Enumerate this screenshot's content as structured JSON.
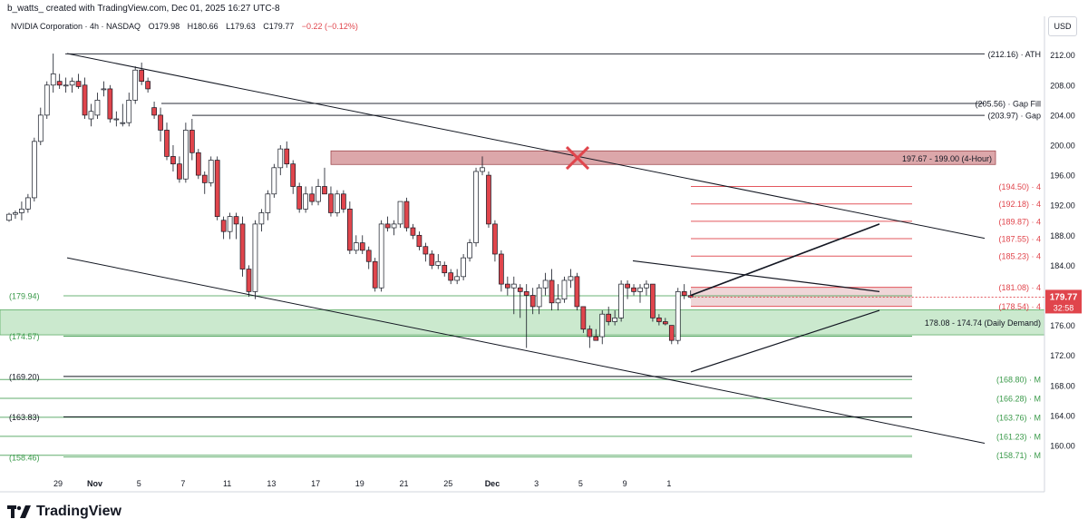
{
  "header": {
    "credit": "b_watts_ created with TradingView.com, Dec 01, 2025 16:27 UTC-8",
    "symbol": "NVIDIA Corporation · 4h · NASDAQ",
    "open": "O179.98",
    "high": "H180.66",
    "low": "L179.63",
    "close": "C179.77",
    "change": "−0.22 (−0.12%)",
    "currency": "USD"
  },
  "footer": {
    "brand": "TradingView"
  },
  "colors": {
    "up_fill": "#ffffff",
    "down_fill": "#e0454c",
    "candle_outline": "#131722",
    "red_level": "#e0454c",
    "green_level": "#3a9a4a",
    "demand_zone": "#b9e2bd",
    "supply_zone": "#d08a8e",
    "price_tag": "#e0454c"
  },
  "chart_data": {
    "type": "candlestick",
    "title": "NVIDIA Corporation · 4h · NASDAQ",
    "ylim": [
      156.5,
      214.5
    ],
    "y_ticks": [
      "212.00",
      "208.00",
      "204.00",
      "200.00",
      "196.00",
      "192.00",
      "188.00",
      "184.00",
      "180.00",
      "176.00",
      "172.00",
      "168.00",
      "164.00",
      "160.00"
    ],
    "x_ticks": [
      {
        "i": 0,
        "label": "29"
      },
      {
        "i": 13,
        "label": "Nov"
      },
      {
        "i": 20,
        "label": "5"
      },
      {
        "i": 27,
        "label": "7"
      },
      {
        "i": 34,
        "label": "11"
      },
      {
        "i": 41,
        "label": "13"
      },
      {
        "i": 48,
        "label": "17"
      },
      {
        "i": 55,
        "label": "19"
      },
      {
        "i": 62,
        "label": "21"
      },
      {
        "i": 69,
        "label": "25"
      },
      {
        "i": 76,
        "label": "Dec"
      },
      {
        "i": 83,
        "label": "3"
      },
      {
        "i": 90,
        "label": "5"
      },
      {
        "i": 97,
        "label": "9"
      },
      {
        "i": 104,
        "label": "1"
      }
    ],
    "candles": [
      [
        190.0,
        191.0,
        189.8,
        190.8
      ],
      [
        190.8,
        191.3,
        190.2,
        191.0
      ],
      [
        191.0,
        192.5,
        190.0,
        191.5
      ],
      [
        191.5,
        193.5,
        191.0,
        193.0
      ],
      [
        193.0,
        201.0,
        192.5,
        200.5
      ],
      [
        200.5,
        205.0,
        200.0,
        204.0
      ],
      [
        204.0,
        208.5,
        203.5,
        208.0
      ],
      [
        208.0,
        212.2,
        207.0,
        209.5
      ],
      [
        208.5,
        209.5,
        207.5,
        208.0
      ],
      [
        208.0,
        209.0,
        207.0,
        208.0
      ],
      [
        208.0,
        209.0,
        207.0,
        208.5
      ],
      [
        208.5,
        209.5,
        207.5,
        207.8
      ],
      [
        208.0,
        209.0,
        203.5,
        204.0
      ],
      [
        203.5,
        205.5,
        202.5,
        204.5
      ],
      [
        204.0,
        207.0,
        203.5,
        206.0
      ],
      [
        207.5,
        208.5,
        206.5,
        207.5
      ],
      [
        207.5,
        208.0,
        203.0,
        203.5
      ],
      [
        203.5,
        204.5,
        202.5,
        203.5
      ],
      [
        203.0,
        205.5,
        202.5,
        203.0
      ],
      [
        203.0,
        207.0,
        202.5,
        206.0
      ],
      [
        206.0,
        210.5,
        205.5,
        210.0
      ],
      [
        210.0,
        211.0,
        208.0,
        208.5
      ],
      [
        208.5,
        209.0,
        207.0,
        207.5
      ],
      [
        205.0,
        205.8,
        203.5,
        204.0
      ],
      [
        204.0,
        205.0,
        200.5,
        202.0
      ],
      [
        202.0,
        203.0,
        198.0,
        198.5
      ],
      [
        198.5,
        200.0,
        196.5,
        197.5
      ],
      [
        197.5,
        198.5,
        195.0,
        195.5
      ],
      [
        195.5,
        203.0,
        195.0,
        202.0
      ],
      [
        202.0,
        203.5,
        198.0,
        199.0
      ],
      [
        199.0,
        199.5,
        195.5,
        196.0
      ],
      [
        196.0,
        196.5,
        193.5,
        195.0
      ],
      [
        195.0,
        198.5,
        194.5,
        198.0
      ],
      [
        198.0,
        198.5,
        190.0,
        190.5
      ],
      [
        190.0,
        190.5,
        187.5,
        188.5
      ],
      [
        188.5,
        191.0,
        187.5,
        190.5
      ],
      [
        190.5,
        191.0,
        187.5,
        189.5
      ],
      [
        189.5,
        190.5,
        182.5,
        183.5
      ],
      [
        183.5,
        184.0,
        179.8,
        180.5
      ],
      [
        180.5,
        190.0,
        179.5,
        189.5
      ],
      [
        189.5,
        191.5,
        188.5,
        191.0
      ],
      [
        191.0,
        194.0,
        190.0,
        193.5
      ],
      [
        193.5,
        197.5,
        193.0,
        197.0
      ],
      [
        197.0,
        200.0,
        196.0,
        199.5
      ],
      [
        199.5,
        200.5,
        197.0,
        197.5
      ],
      [
        197.5,
        198.0,
        193.5,
        194.5
      ],
      [
        194.5,
        195.0,
        191.0,
        191.5
      ],
      [
        191.5,
        194.5,
        191.0,
        193.5
      ],
      [
        193.5,
        194.5,
        192.0,
        192.5
      ],
      [
        192.5,
        195.5,
        192.0,
        194.5
      ],
      [
        194.5,
        197.0,
        193.5,
        193.5
      ],
      [
        193.5,
        194.5,
        190.5,
        191.0
      ],
      [
        191.0,
        194.0,
        190.5,
        193.5
      ],
      [
        193.5,
        194.0,
        191.0,
        191.5
      ],
      [
        191.5,
        192.5,
        185.5,
        186.0
      ],
      [
        186.0,
        188.0,
        185.5,
        187.0
      ],
      [
        187.0,
        188.0,
        185.5,
        186.0
      ],
      [
        186.0,
        186.5,
        183.5,
        184.5
      ],
      [
        184.5,
        185.0,
        180.5,
        181.0
      ],
      [
        181.0,
        190.0,
        180.5,
        189.5
      ],
      [
        189.5,
        190.5,
        188.5,
        189.0
      ],
      [
        189.0,
        190.0,
        188.0,
        189.5
      ],
      [
        189.5,
        192.5,
        189.0,
        192.5
      ],
      [
        192.5,
        193.0,
        188.5,
        189.0
      ],
      [
        189.0,
        189.5,
        187.5,
        188.0
      ],
      [
        188.0,
        188.5,
        186.0,
        186.5
      ],
      [
        186.5,
        187.0,
        184.5,
        185.5
      ],
      [
        185.5,
        186.0,
        183.5,
        184.0
      ],
      [
        184.0,
        185.5,
        183.5,
        184.5
      ],
      [
        184.0,
        184.5,
        182.5,
        183.0
      ],
      [
        183.0,
        183.5,
        181.5,
        182.0
      ],
      [
        182.0,
        183.5,
        181.5,
        182.5
      ],
      [
        182.5,
        185.5,
        182.0,
        185.0
      ],
      [
        185.0,
        187.5,
        184.5,
        187.0
      ],
      [
        187.0,
        197.0,
        186.5,
        196.5
      ],
      [
        196.5,
        198.5,
        196.0,
        197.0
      ],
      [
        196.0,
        196.5,
        189.0,
        189.5
      ],
      [
        189.5,
        190.0,
        184.5,
        185.5
      ],
      [
        185.5,
        186.0,
        180.5,
        181.5
      ],
      [
        181.5,
        182.5,
        180.0,
        181.0
      ],
      [
        181.0,
        182.5,
        177.5,
        181.5
      ],
      [
        181.0,
        181.5,
        177.0,
        180.5
      ],
      [
        180.5,
        181.5,
        173.0,
        180.0
      ],
      [
        180.0,
        181.0,
        177.5,
        178.5
      ],
      [
        178.5,
        181.5,
        177.5,
        181.0
      ],
      [
        181.0,
        183.0,
        180.0,
        182.0
      ],
      [
        182.0,
        183.5,
        178.0,
        179.0
      ],
      [
        179.0,
        181.5,
        178.0,
        179.5
      ],
      [
        179.5,
        182.5,
        179.0,
        182.0
      ],
      [
        182.0,
        183.5,
        181.0,
        182.5
      ],
      [
        182.5,
        183.0,
        178.0,
        178.5
      ],
      [
        178.5,
        178.5,
        175.0,
        175.5
      ],
      [
        175.5,
        176.0,
        173.0,
        174.5
      ],
      [
        174.5,
        175.5,
        174.0,
        174.0
      ],
      [
        174.5,
        178.0,
        173.5,
        177.5
      ],
      [
        177.5,
        178.5,
        176.0,
        176.5
      ],
      [
        176.5,
        178.0,
        176.0,
        177.0
      ],
      [
        177.0,
        182.0,
        176.5,
        181.5
      ],
      [
        181.5,
        182.0,
        179.5,
        181.0
      ],
      [
        181.0,
        181.5,
        180.0,
        180.5
      ],
      [
        180.5,
        181.5,
        179.0,
        181.0
      ],
      [
        181.0,
        182.0,
        180.0,
        181.5
      ],
      [
        181.5,
        181.5,
        176.5,
        177.0
      ],
      [
        177.0,
        177.5,
        176.0,
        176.5
      ],
      [
        176.5,
        177.0,
        176.0,
        176.2
      ],
      [
        176.0,
        176.0,
        173.5,
        174.0
      ],
      [
        174.0,
        181.0,
        173.5,
        180.5
      ],
      [
        180.5,
        181.5,
        179.5,
        180.0
      ],
      [
        179.98,
        180.66,
        179.63,
        179.77
      ]
    ],
    "levels": [
      {
        "price": 212.16,
        "label": "(212.16) · ATH",
        "color": "#131722"
      },
      {
        "price": 205.56,
        "label": "(205.56) · Gap Fill",
        "color": "#131722"
      },
      {
        "price": 203.97,
        "label": "(203.97) · Gap",
        "color": "#131722"
      },
      {
        "price": 194.5,
        "label": "(194.50) · 4",
        "color": "#e0454c"
      },
      {
        "price": 192.18,
        "label": "(192.18) · 4",
        "color": "#e0454c"
      },
      {
        "price": 189.87,
        "label": "(189.87) · 4",
        "color": "#e0454c"
      },
      {
        "price": 187.55,
        "label": "(187.55) · 4",
        "color": "#e0454c"
      },
      {
        "price": 185.23,
        "label": "(185.23) · 4",
        "color": "#e0454c"
      },
      {
        "price": 181.08,
        "label": "(181.08) · 4",
        "color": "#e0454c"
      },
      {
        "price": 178.54,
        "label": "(178.54) · 4",
        "color": "#e0454c"
      },
      {
        "price": 168.8,
        "label": "(168.80) · M",
        "color": "#3a9a4a"
      },
      {
        "price": 166.28,
        "label": "(166.28) · M",
        "color": "#3a9a4a"
      },
      {
        "price": 163.76,
        "label": "(163.76) · M",
        "color": "#3a9a4a"
      },
      {
        "price": 161.23,
        "label": "(161.23) · M",
        "color": "#3a9a4a"
      },
      {
        "price": 158.71,
        "label": "(158.71) · M",
        "color": "#3a9a4a"
      }
    ],
    "left_levels": [
      {
        "price": 179.94,
        "label": "(179.94)",
        "color": "#3a9a4a"
      },
      {
        "price": 174.57,
        "label": "(174.57)",
        "color": "#3a9a4a"
      },
      {
        "price": 169.2,
        "label": "(169.20)",
        "color": "#131722"
      },
      {
        "price": 163.83,
        "label": "(163.83)",
        "color": "#131722"
      },
      {
        "price": 158.46,
        "label": "(158.46)",
        "color": "#3a9a4a"
      }
    ],
    "zones": [
      {
        "low": 197.67,
        "high": 199.0,
        "label": "197.67 - 199.00 (4-Hour)"
      },
      {
        "low": 174.74,
        "high": 178.08,
        "label": "178.08 - 174.74 (Daily Demand)"
      }
    ],
    "current_price": {
      "price": "179.77",
      "countdown": "32:58"
    }
  }
}
